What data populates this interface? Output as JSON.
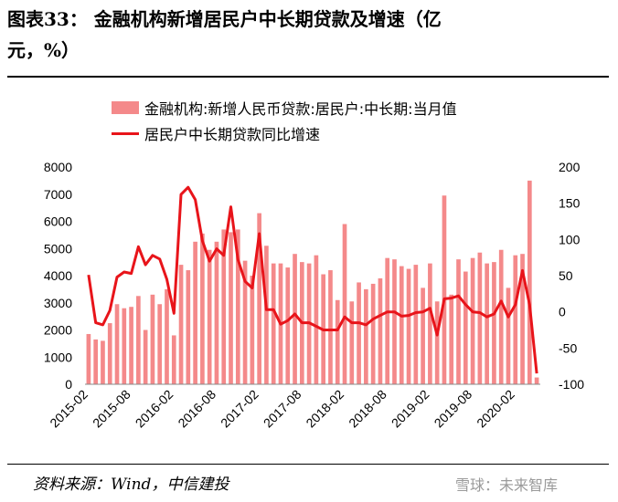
{
  "title_line1": "图表33： 金融机构新增居民户中长期贷款及增速（亿",
  "title_line2": "元，%）",
  "source": "资料来源：Wind，中信建投",
  "watermark": "雪球：未来智库",
  "colors": {
    "bar": "#f4898a",
    "line": "#e8141a"
  },
  "chart_data": {
    "type": "bar",
    "title": "",
    "series": [
      {
        "name": "金融机构:新增人民币贷款:居民户:中长期:当月值",
        "type": "bar",
        "axis": "left",
        "values": [
          1850,
          1650,
          1600,
          2250,
          2950,
          2800,
          2850,
          3250,
          2000,
          3300,
          2950,
          3500,
          1800,
          4400,
          4200,
          5250,
          5550,
          4950,
          5250,
          5700,
          5600,
          5700,
          4550,
          4000,
          6300,
          5100,
          4450,
          4450,
          4300,
          4800,
          4500,
          4450,
          4750,
          4050,
          4200,
          3100,
          5900,
          3050,
          3750,
          3500,
          3700,
          3900,
          4650,
          4600,
          4350,
          4250,
          4400,
          3550,
          4450,
          3050,
          6950,
          3300,
          4600,
          4150,
          4650,
          4850,
          4450,
          4500,
          4950,
          3550,
          4750,
          4800,
          7500,
          250
        ]
      },
      {
        "name": "居民户中长期贷款同比增速",
        "type": "line",
        "axis": "right",
        "values": [
          51,
          -15,
          -18,
          2,
          48,
          55,
          53,
          90,
          65,
          78,
          73,
          45,
          -2,
          162,
          172,
          155,
          98,
          70,
          87,
          78,
          145,
          72,
          42,
          33,
          108,
          3,
          3,
          -17,
          -12,
          -3,
          -15,
          -15,
          -20,
          -25,
          -25,
          -25,
          -7,
          -15,
          -15,
          -18,
          -10,
          -5,
          0,
          0,
          -6,
          -5,
          -1,
          0,
          5,
          -32,
          18,
          19,
          22,
          10,
          0,
          -1,
          -7,
          -3,
          15,
          -7,
          10,
          57,
          10,
          -85
        ]
      }
    ],
    "x_tick_labels": [
      "2015-02",
      "2015-08",
      "2016-02",
      "2016-08",
      "2017-02",
      "2017-08",
      "2018-02",
      "2018-08",
      "2019-02",
      "2019-08",
      "2020-02"
    ],
    "x_start": "2015-02",
    "y_left": {
      "min": 0,
      "max": 8000,
      "ticks": [
        0,
        1000,
        2000,
        3000,
        4000,
        5000,
        6000,
        7000,
        8000
      ]
    },
    "y_right": {
      "min": -100,
      "max": 200,
      "ticks": [
        -100,
        -50,
        0,
        50,
        100,
        150,
        200
      ]
    },
    "legend_position": "top-left",
    "grid": false
  }
}
